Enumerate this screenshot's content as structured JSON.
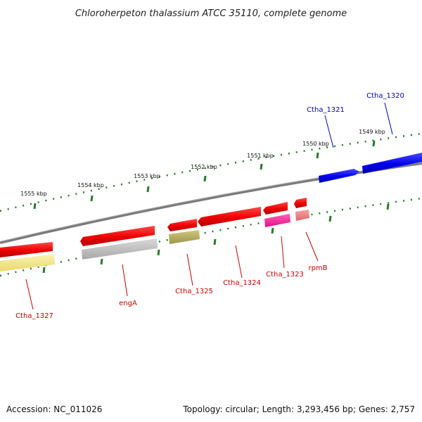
{
  "title": "Chloroherpeton thalassium ATCC 35110, complete genome",
  "scale_labels": [
    "1549 kbp",
    "1550 kbp",
    "1551 kbp",
    "1552 kbp",
    "1553 kbp",
    "1554 kbp",
    "1555 kbp"
  ],
  "genes": [
    {
      "label": "Ctha_1320",
      "color": "#0000cc"
    },
    {
      "label": "Ctha_1321",
      "color": "#0000cc"
    },
    {
      "label": "rpmB",
      "color": "#cc0000"
    },
    {
      "label": "Ctha_1323",
      "color": "#cc0000"
    },
    {
      "label": "Ctha_1324",
      "color": "#cc0000"
    },
    {
      "label": "Ctha_1325",
      "color": "#cc0000"
    },
    {
      "label": "engA",
      "color": "#cc0000"
    },
    {
      "label": "Ctha_1327",
      "color": "#cc0000"
    }
  ],
  "colors": {
    "forward_gene": "#0000ee",
    "reverse_gene": "#ee0000",
    "backbone": "#808080",
    "tick": "#2a7a2a",
    "cog_magenta": "#ff1493",
    "cog_pink": "#f08080",
    "cog_gray": "#bdbdbd",
    "cog_olive": "#b5ad5a",
    "cog_yellow": "#f5e68a"
  },
  "footer": {
    "accession": "Accession: NC_011026",
    "stats": "Topology: circular; Length: 3,293,456 bp; Genes: 2,757"
  }
}
